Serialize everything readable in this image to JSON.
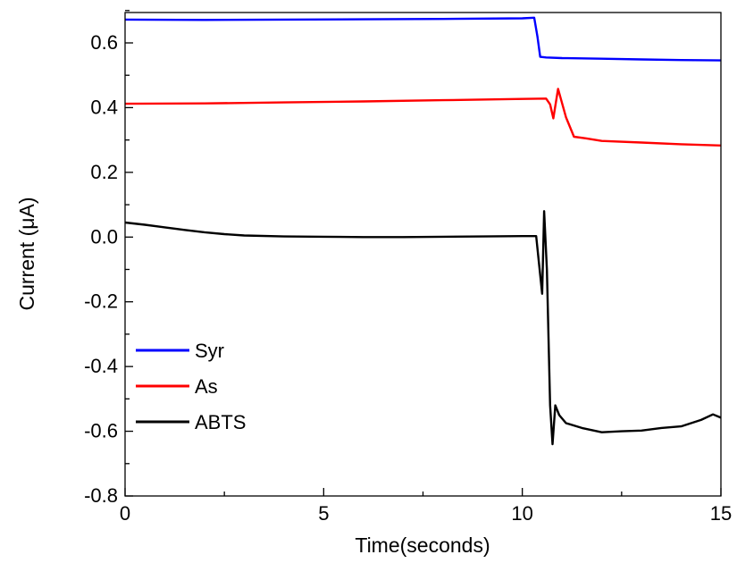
{
  "chart_data": {
    "type": "line",
    "xlabel": "Time(seconds)",
    "ylabel": "Current (μA)",
    "xlim": [
      0,
      15
    ],
    "ylim": [
      -0.8,
      0.7
    ],
    "xticks": [
      0,
      5,
      10,
      15
    ],
    "yticks": [
      -0.8,
      -0.6,
      -0.4,
      -0.2,
      0.0,
      0.2,
      0.4,
      0.6
    ],
    "ytick_labels": [
      "-0.8",
      "-0.6",
      "-0.4",
      "-0.2",
      "0.0",
      "0.2",
      "0.4",
      "0.6"
    ],
    "xtick_labels": [
      "0",
      "5",
      "10",
      "15"
    ],
    "grid": false,
    "legend_position": "bottom-left",
    "series": [
      {
        "name": "Syr",
        "color": "#0000ff",
        "x": [
          0,
          2,
          4,
          6,
          8,
          10,
          10.3,
          10.38,
          10.45,
          10.6,
          11,
          12,
          13,
          14,
          15
        ],
        "y": [
          0.672,
          0.671,
          0.672,
          0.673,
          0.674,
          0.676,
          0.678,
          0.62,
          0.557,
          0.555,
          0.553,
          0.551,
          0.549,
          0.547,
          0.546
        ]
      },
      {
        "name": "As",
        "color": "#ff0000",
        "x": [
          0,
          2,
          4,
          6,
          8,
          10,
          10.6,
          10.7,
          10.78,
          10.9,
          11.1,
          11.3,
          11.6,
          12,
          13,
          14,
          15
        ],
        "y": [
          0.412,
          0.413,
          0.416,
          0.419,
          0.423,
          0.427,
          0.428,
          0.41,
          0.367,
          0.458,
          0.37,
          0.31,
          0.305,
          0.297,
          0.292,
          0.287,
          0.283
        ]
      },
      {
        "name": "ABTS",
        "color": "#000000",
        "x": [
          0,
          0.5,
          1,
          1.5,
          2,
          2.5,
          3,
          4,
          5,
          6,
          7,
          8,
          9,
          10,
          10.35,
          10.42,
          10.5,
          10.55,
          10.62,
          10.7,
          10.76,
          10.83,
          10.93,
          11.1,
          11.5,
          12,
          12.5,
          13,
          13.5,
          14,
          14.5,
          14.8,
          15
        ],
        "y": [
          0.045,
          0.038,
          0.03,
          0.022,
          0.015,
          0.009,
          0.005,
          0.002,
          0.001,
          0.0,
          0.0,
          0.001,
          0.002,
          0.003,
          0.003,
          -0.08,
          -0.175,
          0.08,
          -0.1,
          -0.52,
          -0.64,
          -0.52,
          -0.55,
          -0.575,
          -0.59,
          -0.603,
          -0.6,
          -0.598,
          -0.59,
          -0.585,
          -0.565,
          -0.548,
          -0.558
        ]
      }
    ]
  }
}
